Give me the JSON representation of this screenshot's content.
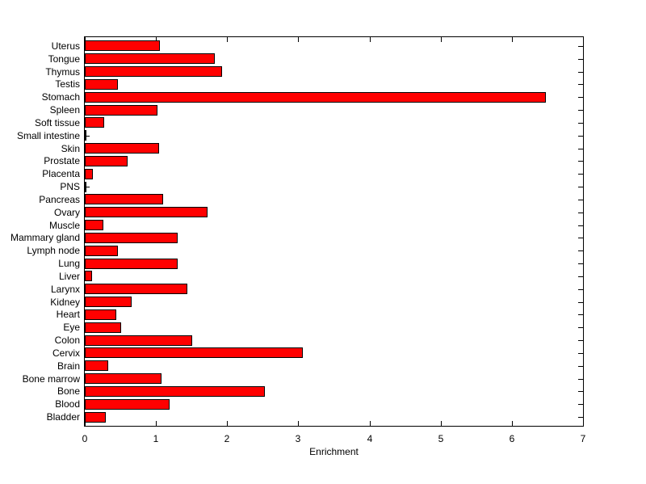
{
  "chart_data": {
    "type": "bar",
    "orientation": "horizontal",
    "title": "",
    "xlabel": "Enrichment",
    "ylabel": "",
    "xlim": [
      0,
      7
    ],
    "xticks": [
      0,
      1,
      2,
      3,
      4,
      5,
      6,
      7
    ],
    "xtick_labels": [
      "0",
      "1",
      "2",
      "3",
      "4",
      "5",
      "6",
      "7"
    ],
    "grid": false,
    "legend": null,
    "category_order": "top-to-bottom",
    "categories": [
      "Uterus",
      "Tongue",
      "Thymus",
      "Testis",
      "Stomach",
      "Spleen",
      "Soft tissue",
      "Small intestine",
      "Skin",
      "Prostate",
      "Placenta",
      "PNS",
      "Pancreas",
      "Ovary",
      "Muscle",
      "Mammary gland",
      "Lymph node",
      "Lung",
      "Liver",
      "Larynx",
      "Kidney",
      "Heart",
      "Eye",
      "Colon",
      "Cervix",
      "Brain",
      "Bone marrow",
      "Bone",
      "Blood",
      "Bladder"
    ],
    "values": [
      1.06,
      1.83,
      1.93,
      0.47,
      6.48,
      1.02,
      0.27,
      0.01,
      1.04,
      0.6,
      0.11,
      0.01,
      1.1,
      1.72,
      0.26,
      1.31,
      0.47,
      1.3,
      0.1,
      1.44,
      0.66,
      0.44,
      0.51,
      1.51,
      3.06,
      0.33,
      1.08,
      2.53,
      1.19,
      0.3
    ],
    "bar_color": "#FF0000",
    "bar_edge_color": "#000000",
    "axis_color": "#000000",
    "background_color": "#FFFFFF"
  }
}
